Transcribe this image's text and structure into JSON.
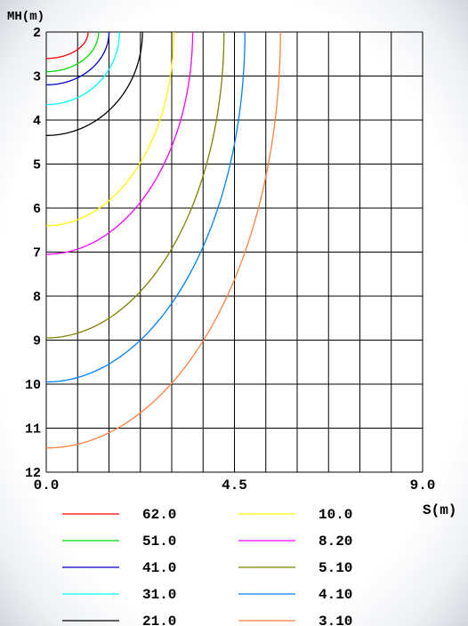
{
  "chart_data": {
    "type": "line",
    "title": "",
    "ylabel": "MH(m)",
    "xlabel": "S(m)",
    "xlim": [
      0,
      9
    ],
    "ylim": [
      2,
      12
    ],
    "y_inverted": true,
    "x_ticks": [
      {
        "value": 0,
        "label": "0.0"
      },
      {
        "value": 4.5,
        "label": "4.5"
      },
      {
        "value": 9,
        "label": "9.0"
      }
    ],
    "y_ticks": [
      {
        "value": 2,
        "label": "2"
      },
      {
        "value": 3,
        "label": "3"
      },
      {
        "value": 4,
        "label": "4"
      },
      {
        "value": 5,
        "label": "5"
      },
      {
        "value": 6,
        "label": "6"
      },
      {
        "value": 7,
        "label": "7"
      },
      {
        "value": 8,
        "label": "8"
      },
      {
        "value": 9,
        "label": "9"
      },
      {
        "value": 10,
        "label": "10"
      },
      {
        "value": 11,
        "label": "11"
      },
      {
        "value": 12,
        "label": "12"
      }
    ],
    "grid": {
      "x_step": 0.75,
      "y_step": 1
    },
    "series": [
      {
        "name": "62.0",
        "color": "#ff0000",
        "center_depth": 2,
        "x_radius": 1.0,
        "depth_radius": 0.6
      },
      {
        "name": "51.0",
        "color": "#00dd00",
        "center_depth": 2,
        "x_radius": 1.25,
        "depth_radius": 0.9
      },
      {
        "name": "41.0",
        "color": "#0000cc",
        "center_depth": 2,
        "x_radius": 1.5,
        "depth_radius": 1.2
      },
      {
        "name": "31.0",
        "color": "#00ffff",
        "center_depth": 2,
        "x_radius": 1.75,
        "depth_radius": 1.65
      },
      {
        "name": "21.0",
        "color": "#000000",
        "center_depth": 2,
        "x_radius": 2.3,
        "depth_radius": 2.35
      },
      {
        "name": "10.0",
        "color": "#ffff00",
        "center_depth": 2,
        "x_radius": 3.05,
        "depth_radius": 4.4
      },
      {
        "name": "8.20",
        "color": "#ff00ff",
        "center_depth": 2,
        "x_radius": 3.5,
        "depth_radius": 5.05
      },
      {
        "name": "5.10",
        "color": "#808000",
        "center_depth": 2,
        "x_radius": 4.25,
        "depth_radius": 6.95
      },
      {
        "name": "4.10",
        "color": "#0080ff",
        "center_depth": 2,
        "x_radius": 4.75,
        "depth_radius": 7.95
      },
      {
        "name": "3.10",
        "color": "#ff8040",
        "center_depth": 2,
        "x_radius": 5.6,
        "depth_radius": 9.45
      }
    ]
  }
}
